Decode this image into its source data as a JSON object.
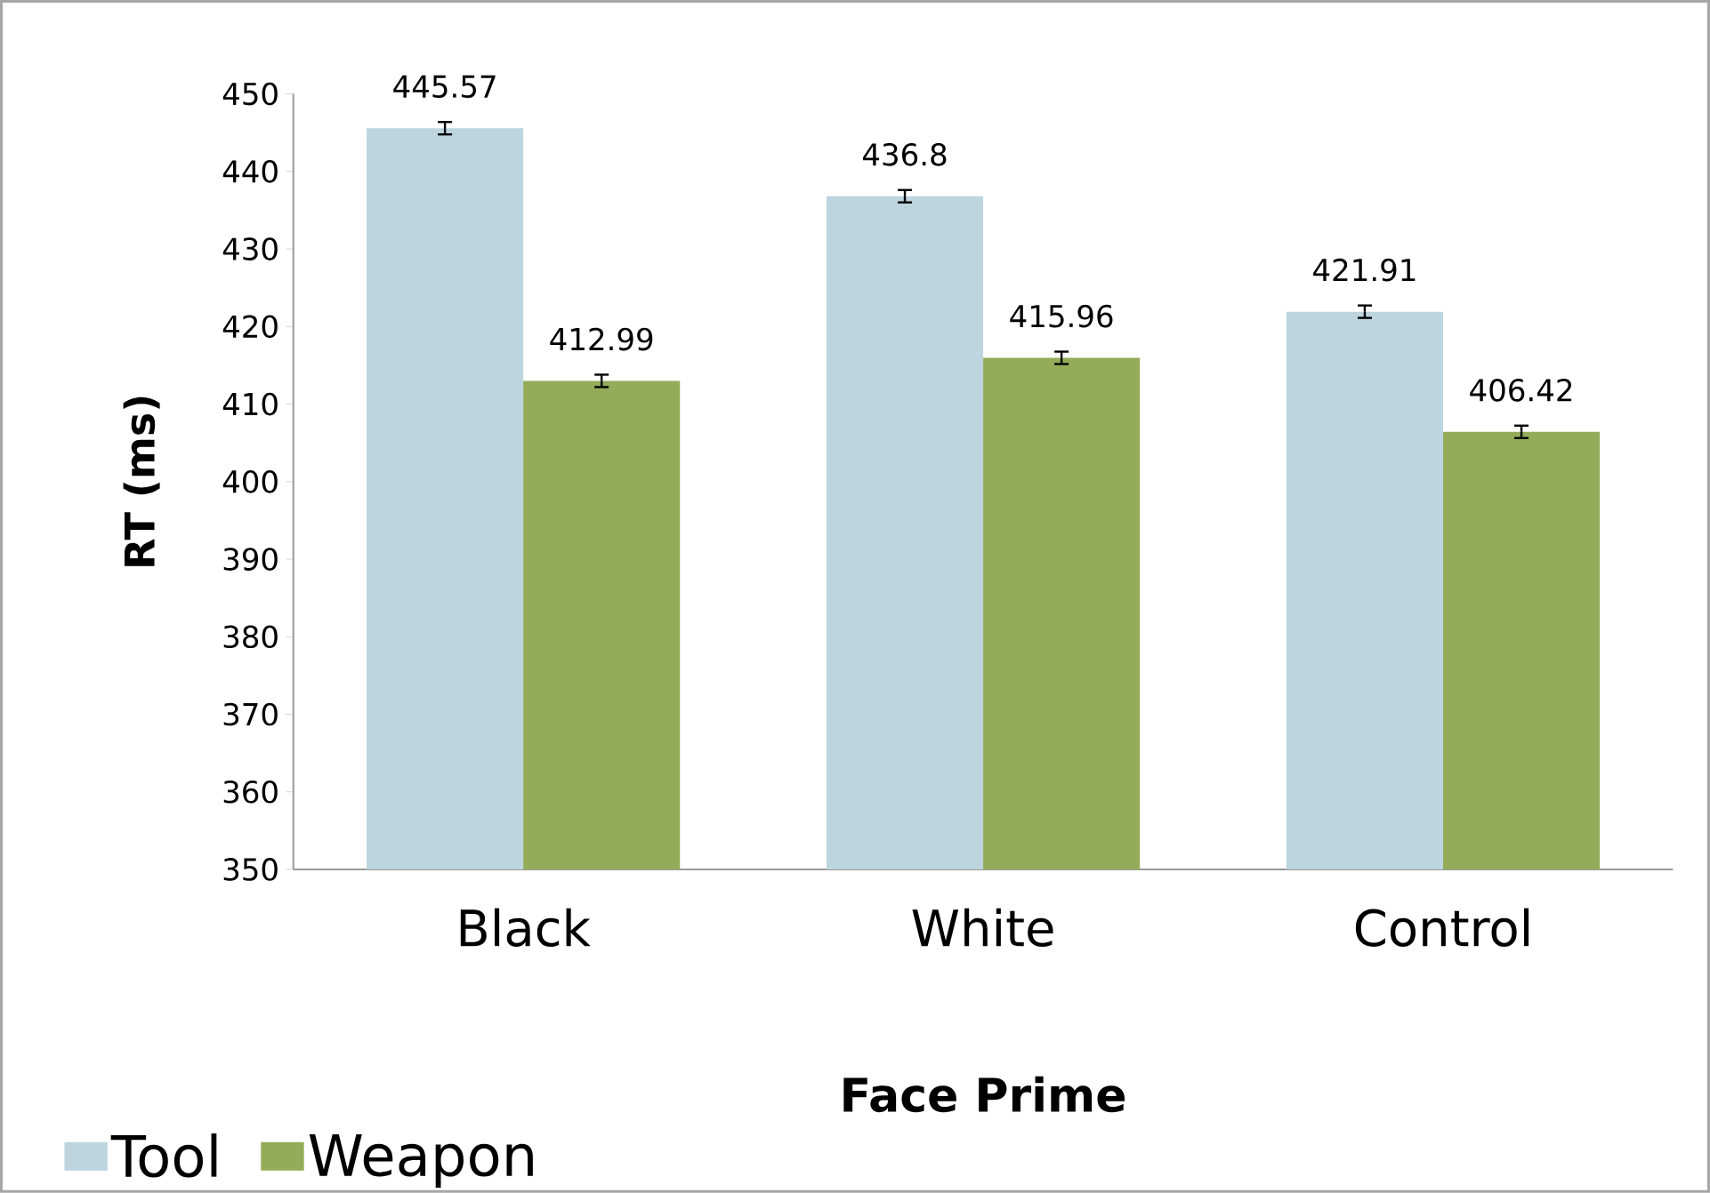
{
  "chart_data": {
    "type": "bar",
    "xlabel": "Face Prime",
    "ylabel": "RT (ms)",
    "categories": [
      "Black",
      "White",
      "Control"
    ],
    "series": [
      {
        "name": "Tool",
        "color": "#bcd5df",
        "values": [
          445.57,
          436.8,
          421.91
        ],
        "errors": [
          0.8,
          0.8,
          0.8
        ]
      },
      {
        "name": "Weapon",
        "color": "#94ac5a",
        "values": [
          412.99,
          415.96,
          406.42
        ],
        "errors": [
          0.8,
          0.8,
          0.8
        ]
      }
    ],
    "ylim": [
      350,
      450
    ],
    "yticks": [
      350,
      360,
      370,
      380,
      390,
      400,
      410,
      420,
      430,
      440,
      450
    ],
    "data_labels": true,
    "grid": false,
    "legend": "bottom left"
  }
}
